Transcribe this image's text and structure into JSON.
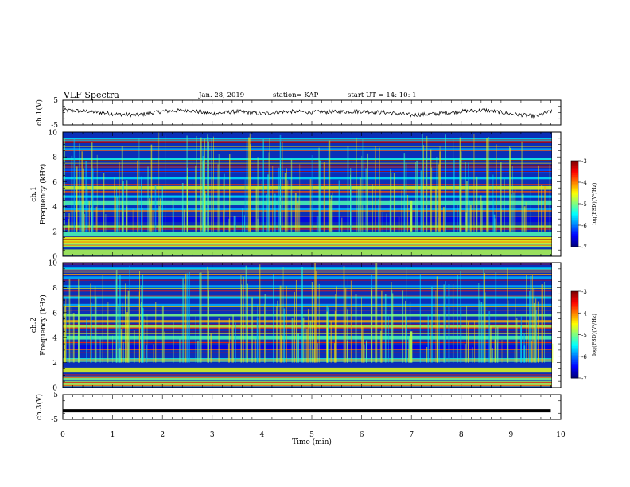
{
  "header": {
    "title": "VLF Spectra",
    "date": "Jan. 28, 2019",
    "station": "station= KAP",
    "start": "start  UT =   14: 10: 1"
  },
  "chart_data": [
    {
      "type": "line",
      "ylabel": "ch.1(V)",
      "ylim": [
        -5,
        5
      ],
      "y_tick_labels": [
        "5",
        "-5"
      ],
      "x_range_min": [
        0,
        10
      ],
      "note": "waveform amplitude trace, approx values",
      "x": [
        0,
        0.5,
        1,
        1.5,
        2,
        2.5,
        3,
        3.5,
        4,
        4.5,
        5,
        5.5,
        6,
        6.5,
        7,
        7.5,
        8,
        8.5,
        9,
        9.5,
        9.8
      ],
      "values": [
        1,
        0.5,
        -0.5,
        -1,
        0.5,
        1,
        -0.5,
        0.5,
        -0.5,
        0.5,
        0.2,
        0.3,
        0.5,
        0,
        -1,
        -0.5,
        0.5,
        1,
        -0.5,
        -1.5,
        0.5
      ]
    },
    {
      "type": "heatmap",
      "ylabel": "ch.1\nFrequency (kHz)",
      "ylim": [
        0,
        10
      ],
      "y_tick_labels": [
        "0",
        "2",
        "4",
        "6",
        "8",
        "10"
      ],
      "xlim": [
        0,
        10
      ],
      "colorbar": {
        "label": "log(PSD)(V²/Hz)",
        "min": -7,
        "max": -3,
        "tick_labels": [
          "-3",
          "-4",
          "-5",
          "-6",
          "-7"
        ]
      }
    },
    {
      "type": "heatmap",
      "ylabel": "ch.2\nFrequency (kHz)",
      "ylim": [
        0,
        10
      ],
      "y_tick_labels": [
        "0",
        "2",
        "4",
        "6",
        "8",
        "10"
      ],
      "xlim": [
        0,
        10
      ],
      "colorbar": {
        "label": "log(PSD)(V²/Hz)",
        "min": -7,
        "max": -3,
        "tick_labels": [
          "-3",
          "-4",
          "-5",
          "-6",
          "-7"
        ]
      }
    },
    {
      "type": "line",
      "ylabel": "ch.3(V)",
      "ylim": [
        -5,
        5
      ],
      "y_tick_labels": [
        "5",
        "-5"
      ],
      "x": [
        0,
        9.8
      ],
      "values": [
        -1.5,
        -1.5
      ]
    }
  ],
  "xaxis": {
    "label": "Time (min)",
    "tick_labels": [
      "0",
      "1",
      "2",
      "3",
      "4",
      "5",
      "6",
      "7",
      "8",
      "9",
      "10"
    ]
  }
}
